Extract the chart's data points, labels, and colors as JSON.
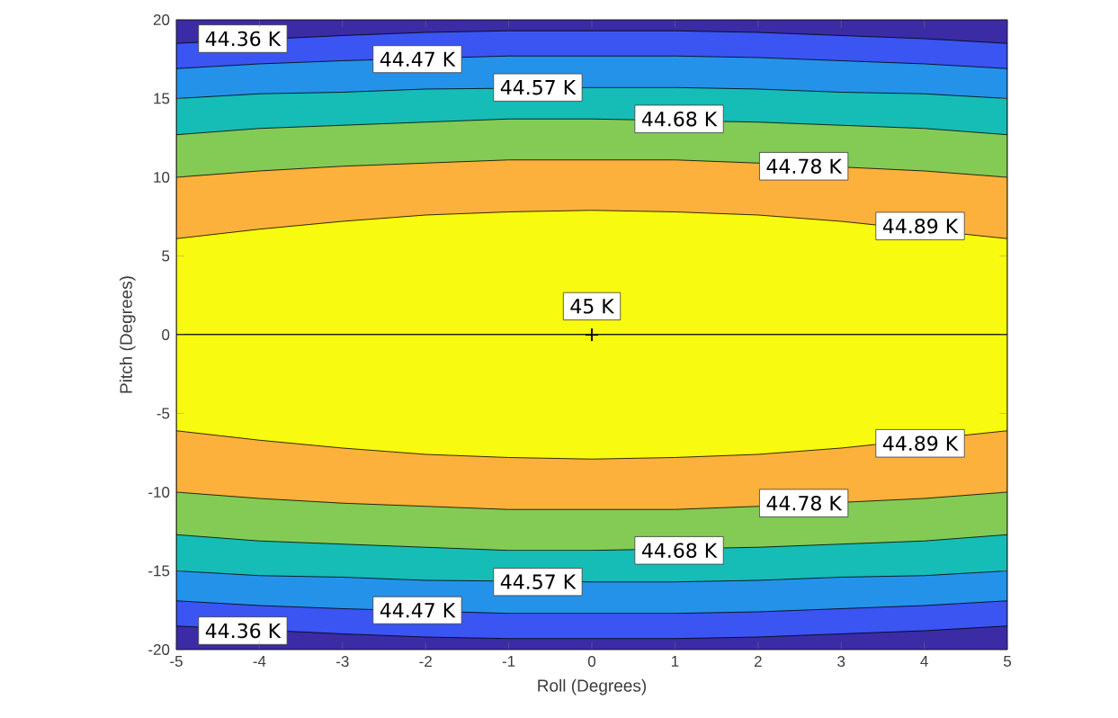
{
  "chart_data": {
    "type": "area",
    "xlabel": "Roll (Degrees)",
    "ylabel": "Pitch (Degrees)",
    "xlim": [
      -5,
      5
    ],
    "ylim": [
      -20,
      20
    ],
    "xticks": [
      -5,
      -4,
      -3,
      -2,
      -1,
      0,
      1,
      2,
      3,
      4,
      5
    ],
    "yticks": [
      -20,
      -15,
      -10,
      -5,
      0,
      5,
      10,
      15,
      20
    ],
    "x": [
      -5,
      -4,
      -3,
      -2,
      -1,
      0,
      1,
      2,
      3,
      4,
      5
    ],
    "bands": [
      {
        "axis": "y",
        "from": -20,
        "to": 20,
        "color": "#3b2ba5"
      }
    ],
    "series": [
      {
        "color": "#3a55f2",
        "values": [
          18.5,
          null,
          19.0,
          19.2,
          19.3,
          19.3,
          19.3,
          19.2,
          19.0,
          18.8,
          18.5
        ]
      },
      {
        "color": "#2592ea",
        "values": [
          16.9,
          17.2,
          17.4,
          null,
          17.7,
          17.7,
          17.7,
          17.6,
          17.4,
          17.2,
          16.9
        ]
      },
      {
        "color": "#15bdb6",
        "values": [
          15.0,
          15.3,
          15.4,
          15.6,
          null,
          15.7,
          15.7,
          15.6,
          15.4,
          15.3,
          15.0
        ]
      },
      {
        "color": "#84cb55",
        "values": [
          12.7,
          13.1,
          13.3,
          13.5,
          13.7,
          13.7,
          null,
          13.5,
          13.3,
          13.1,
          12.7
        ]
      },
      {
        "color": "#fcb13c",
        "values": [
          10.0,
          10.4,
          10.7,
          10.9,
          11.1,
          11.1,
          11.1,
          10.9,
          null,
          10.4,
          10.0
        ]
      },
      {
        "color": "#f8fa0f",
        "values": [
          6.1,
          6.7,
          7.2,
          7.6,
          7.8,
          7.9,
          7.8,
          7.6,
          7.2,
          null,
          6.1
        ]
      },
      {
        "color": "#3a55f2",
        "values": [
          -18.5,
          null,
          -19.0,
          -19.2,
          -19.3,
          -19.3,
          -19.3,
          -19.2,
          -19.0,
          -18.8,
          -18.5
        ]
      },
      {
        "color": "#2592ea",
        "values": [
          -16.9,
          -17.2,
          -17.4,
          null,
          -17.7,
          -17.7,
          -17.7,
          -17.6,
          -17.4,
          -17.2,
          -16.9
        ]
      },
      {
        "color": "#15bdb6",
        "values": [
          -15.0,
          -15.3,
          -15.4,
          -15.6,
          null,
          -15.7,
          -15.7,
          -15.6,
          -15.4,
          -15.3,
          -15.0
        ]
      },
      {
        "color": "#84cb55",
        "values": [
          -12.7,
          -13.1,
          -13.3,
          -13.5,
          -13.7,
          -13.7,
          null,
          -13.5,
          -13.3,
          -13.1,
          -12.7
        ]
      },
      {
        "color": "#fcb13c",
        "values": [
          -10.0,
          -10.4,
          -10.7,
          -10.9,
          -11.1,
          -11.1,
          -11.1,
          -10.9,
          null,
          -10.4,
          -10.0
        ]
      },
      {
        "color": "#f8fa0f",
        "values": [
          -6.1,
          -6.7,
          -7.2,
          -7.6,
          -7.8,
          -7.9,
          -7.8,
          -7.6,
          -7.2,
          null,
          -6.1
        ]
      },
      {
        "type": "scatter",
        "color": "#000000",
        "marker": "cross",
        "x": [
          0
        ],
        "values": [
          0
        ]
      }
    ],
    "annotations": [
      {
        "text": "44.36 K",
        "x": -4.2,
        "y": 18.8
      },
      {
        "text": "44.47 K",
        "x": -2.1,
        "y": 17.5
      },
      {
        "text": "44.57 K",
        "x": -0.65,
        "y": 15.7
      },
      {
        "text": "44.68 K",
        "x": 1.05,
        "y": 13.7
      },
      {
        "text": "44.78 K",
        "x": 2.55,
        "y": 10.7
      },
      {
        "text": "44.89 K",
        "x": 3.95,
        "y": 6.9
      },
      {
        "text": "45 K",
        "x": 0,
        "y": 0
      },
      {
        "text": "44.89 K",
        "x": 3.95,
        "y": -6.9
      },
      {
        "text": "44.78 K",
        "x": 2.55,
        "y": -10.7
      },
      {
        "text": "44.68 K",
        "x": 1.05,
        "y": -13.7
      },
      {
        "text": "44.57 K",
        "x": -0.65,
        "y": -15.7
      },
      {
        "text": "44.47 K",
        "x": -2.1,
        "y": -17.5
      },
      {
        "text": "44.36 K",
        "x": -4.2,
        "y": -18.8
      }
    ]
  }
}
